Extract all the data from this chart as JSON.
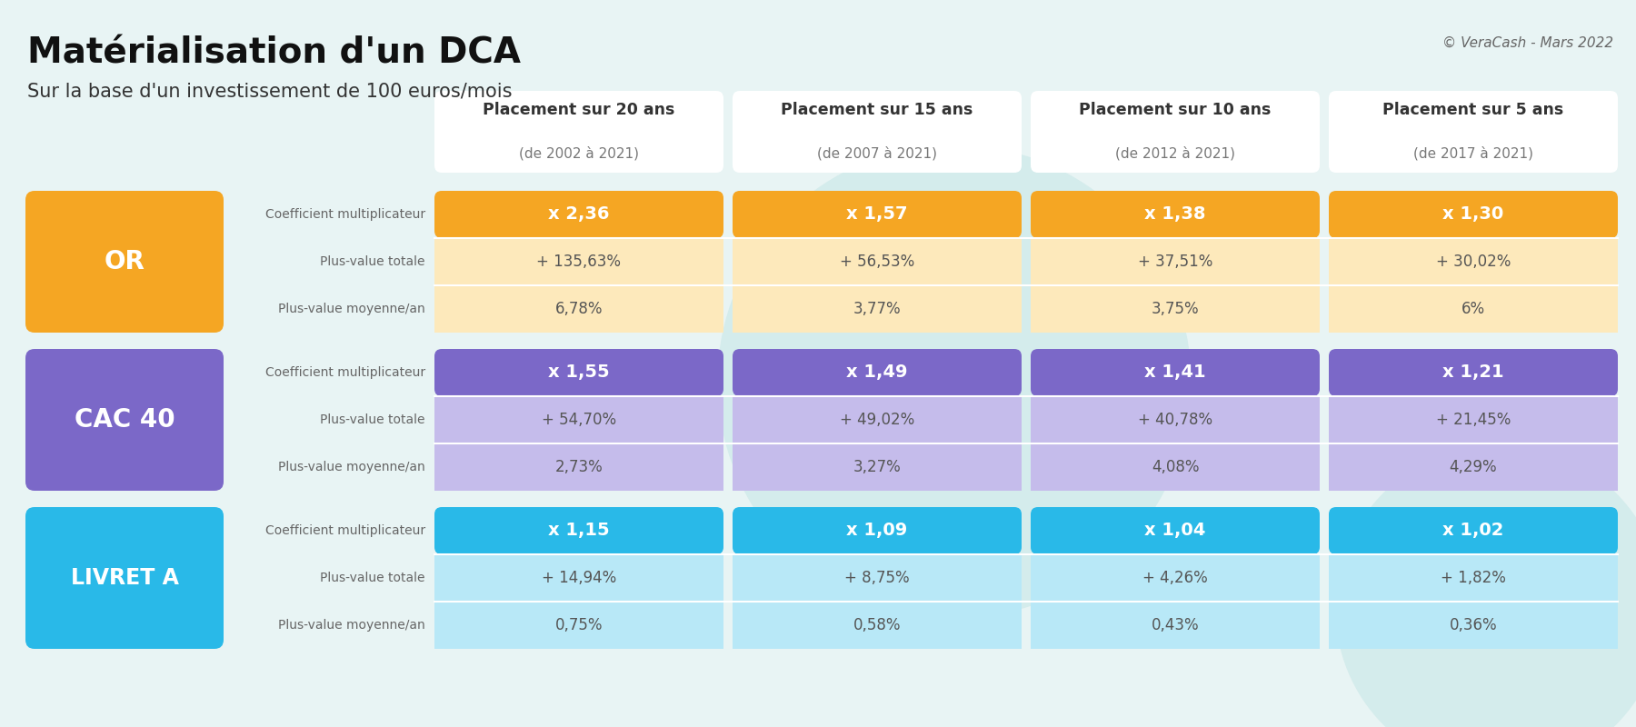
{
  "title": "Matérialisation d'un DCA",
  "subtitle": "Sur la base d'un investissement de 100 euros/mois",
  "copyright": "© VeraCash - Mars 2022",
  "background_color": "#e8f4f4",
  "col_headers": [
    [
      "Placement sur 20 ans",
      "(de 2002 à 2021)"
    ],
    [
      "Placement sur 15 ans",
      "(de 2007 à 2021)"
    ],
    [
      "Placement sur 10 ans",
      "(de 2012 à 2021)"
    ],
    [
      "Placement sur 5 ans",
      "(de 2017 à 2021)"
    ]
  ],
  "row_labels": [
    "Coefficient multiplicateur",
    "Plus-value totale",
    "Plus-value moyenne/an"
  ],
  "sections": [
    {
      "name": "OR",
      "label_bg": "#F5A623",
      "label_text_color": "#ffffff",
      "row1_bg": "#F5A623",
      "row2_bg": "#FDE9BB",
      "row3_bg": "#FDE9BB",
      "row1_text_color": "#ffffff",
      "row2_text_color": "#555555",
      "row3_text_color": "#555555",
      "data": [
        [
          "x 2,36",
          "x 1,57",
          "x 1,38",
          "x 1,30"
        ],
        [
          "+ 135,63%",
          "+ 56,53%",
          "+ 37,51%",
          "+ 30,02%"
        ],
        [
          "6,78%",
          "3,77%",
          "3,75%",
          "6%"
        ]
      ]
    },
    {
      "name": "CAC 40",
      "label_bg": "#7B68C8",
      "label_text_color": "#ffffff",
      "row1_bg": "#7B68C8",
      "row2_bg": "#C5BCEB",
      "row3_bg": "#C5BCEB",
      "row1_text_color": "#ffffff",
      "row2_text_color": "#555555",
      "row3_text_color": "#555555",
      "data": [
        [
          "x 1,55",
          "x 1,49",
          "x 1,41",
          "x 1,21"
        ],
        [
          "+ 54,70%",
          "+ 49,02%",
          "+ 40,78%",
          "+ 21,45%"
        ],
        [
          "2,73%",
          "3,27%",
          "4,08%",
          "4,29%"
        ]
      ]
    },
    {
      "name": "LIVRET A",
      "label_bg": "#29B9E8",
      "label_text_color": "#ffffff",
      "row1_bg": "#29B9E8",
      "row2_bg": "#B8E8F7",
      "row3_bg": "#B8E8F7",
      "row1_text_color": "#ffffff",
      "row2_text_color": "#555555",
      "row3_text_color": "#555555",
      "data": [
        [
          "x 1,15",
          "x 1,09",
          "x 1,04",
          "x 1,02"
        ],
        [
          "+ 14,94%",
          "+ 8,75%",
          "+ 4,26%",
          "+ 1,82%"
        ],
        [
          "0,75%",
          "0,58%",
          "0,43%",
          "0,36%"
        ]
      ]
    }
  ],
  "circle_color": "#d4ecec",
  "col_header_text_color": "#333333",
  "row_label_text_color": "#666666"
}
